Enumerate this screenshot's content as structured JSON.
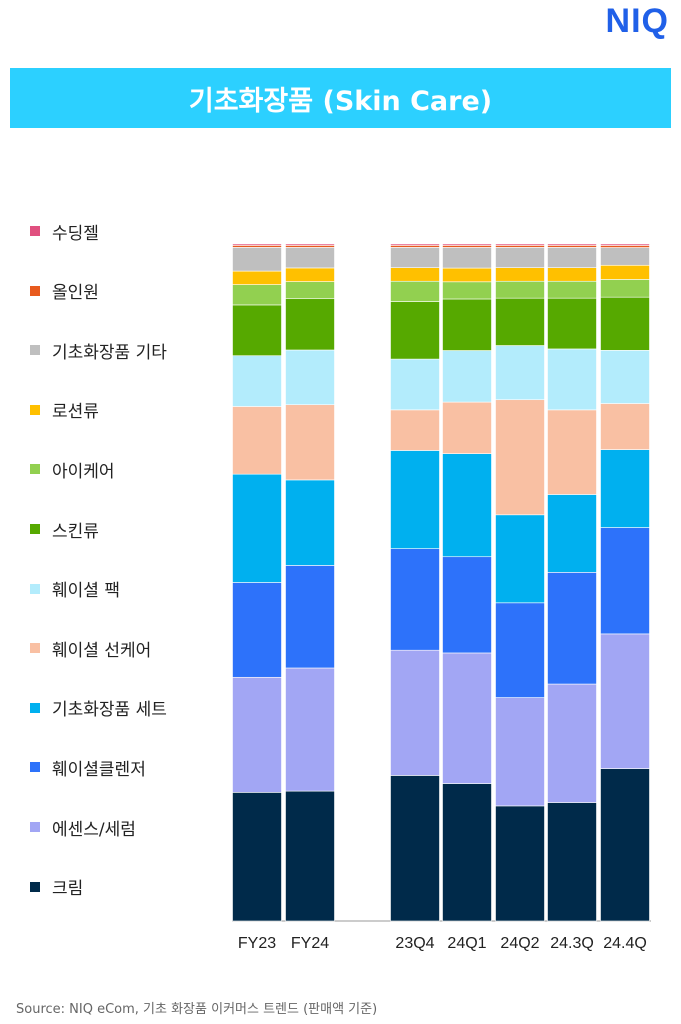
{
  "brand": "NIQ",
  "header": {
    "title": "기초화장품 (Skin Care)"
  },
  "source": "Source: NIQ eCom, 기초 화장품 이커머스 트렌드 (판매액 기준)",
  "chart_data": {
    "type": "bar",
    "stacked": true,
    "normalized": true,
    "grid": false,
    "legend_position": "left",
    "categories": [
      "FY23",
      "FY24",
      "23Q4",
      "24Q1",
      "24Q2",
      "24.3Q",
      "24.4Q"
    ],
    "series": [
      {
        "name": "크림",
        "color": "#002a4a",
        "values": [
          19,
          19,
          21.5,
          20,
          17,
          17.5,
          21.5
        ]
      },
      {
        "name": "에센스/세럼",
        "color": "#a2a6f4",
        "values": [
          17,
          18,
          18.5,
          19,
          16,
          17.5,
          19
        ]
      },
      {
        "name": "훼이셜클렌저",
        "color": "#2d72fa",
        "values": [
          14,
          15,
          15,
          14,
          14,
          16.5,
          15
        ]
      },
      {
        "name": "기초화장품 세트",
        "color": "#00b0ef",
        "values": [
          16,
          12.5,
          14.5,
          15,
          13,
          11.5,
          11
        ]
      },
      {
        "name": "훼이셜 선케어",
        "color": "#f9c0a3",
        "values": [
          10,
          11,
          6,
          7.5,
          17,
          12.5,
          6.5
        ]
      },
      {
        "name": "훼이셜 팩",
        "color": "#b3ecfc",
        "values": [
          7.5,
          8,
          7.5,
          7.5,
          8,
          9,
          7.5
        ]
      },
      {
        "name": "스킨류",
        "color": "#56a900",
        "values": [
          7.5,
          7.5,
          8.5,
          7.5,
          7,
          7.5,
          7.5
        ]
      },
      {
        "name": "아이케어",
        "color": "#92d050",
        "values": [
          3,
          2.5,
          3,
          2.5,
          2.5,
          2.5,
          2.5
        ]
      },
      {
        "name": "로션류",
        "color": "#ffc000",
        "values": [
          2,
          2,
          2,
          2,
          2,
          2,
          2
        ]
      },
      {
        "name": "기초화장품 기타",
        "color": "#bfbfbf",
        "values": [
          3.5,
          3,
          3,
          3,
          3,
          3,
          2.5
        ]
      },
      {
        "name": "올인원",
        "color": "#e85a1e",
        "values": [
          0.3,
          0.3,
          0.3,
          0.3,
          0.3,
          0.3,
          0.3
        ]
      },
      {
        "name": "수딩젤",
        "color": "#e0507f",
        "values": [
          0.2,
          0.2,
          0.2,
          0.2,
          0.2,
          0.2,
          0.2
        ]
      }
    ]
  }
}
